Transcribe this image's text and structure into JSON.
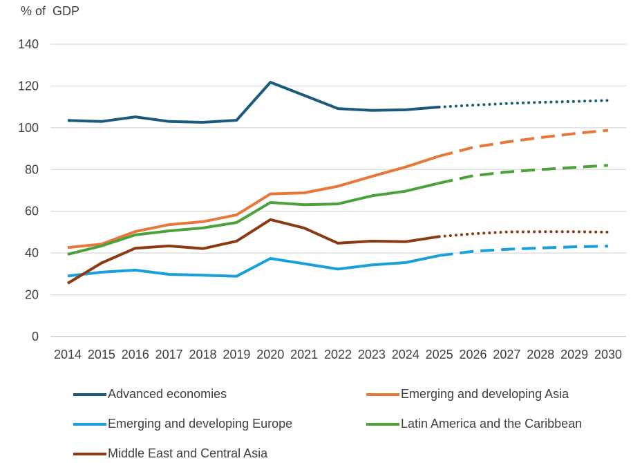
{
  "chart_data": {
    "type": "line",
    "ylabel": "% of  GDP",
    "ylim": [
      0,
      140
    ],
    "yticks": [
      0,
      20,
      40,
      60,
      80,
      100,
      120,
      140
    ],
    "grid": true,
    "categories": [
      "2014",
      "2015",
      "2016",
      "2017",
      "2018",
      "2019",
      "2020",
      "2021",
      "2022",
      "2023",
      "2024",
      "2025",
      "2026",
      "2027",
      "2028",
      "2029",
      "2030"
    ],
    "projection_start": "2025",
    "legend_position": "bottom",
    "series": [
      {
        "name": "Advanced economies",
        "color": "#1b5a7a",
        "projection_style": "dotted",
        "values": [
          103.5,
          103,
          105.2,
          103,
          102.6,
          103.6,
          121.8,
          115.5,
          109.2,
          108.3,
          108.6,
          109.9,
          110.8,
          111.6,
          112.2,
          112.6,
          113.1
        ]
      },
      {
        "name": "Emerging and developing Asia",
        "color": "#e8773a",
        "projection_style": "dashed",
        "values": [
          42.6,
          44.3,
          50.3,
          53.6,
          55.0,
          58.3,
          68.3,
          68.8,
          72.0,
          76.7,
          81.2,
          86.4,
          90.6,
          93.2,
          95.3,
          97.2,
          98.8
        ]
      },
      {
        "name": "Emerging and developing Europe",
        "color": "#1aa0d8",
        "projection_style": "dashed",
        "values": [
          29.0,
          30.8,
          31.8,
          29.8,
          29.4,
          28.9,
          37.4,
          34.9,
          32.3,
          34.3,
          35.4,
          38.8,
          40.8,
          41.8,
          42.4,
          43.0,
          43.3
        ]
      },
      {
        "name": "Latin America and the Caribbean",
        "color": "#4ca23a",
        "projection_style": "dashed",
        "values": [
          39.4,
          43.4,
          48.7,
          50.6,
          52.0,
          54.6,
          64.2,
          63.1,
          63.5,
          67.4,
          69.6,
          73.5,
          77.0,
          78.8,
          80.0,
          81.0,
          82.0
        ]
      },
      {
        "name": "Middle East and Central Asia",
        "color": "#8b3a12",
        "projection_style": "dotted",
        "values": [
          25.5,
          35.2,
          42.3,
          43.4,
          42.1,
          45.7,
          56.0,
          52.0,
          44.7,
          45.7,
          45.4,
          47.9,
          49.2,
          50.1,
          50.2,
          50.2,
          50.0
        ]
      }
    ]
  }
}
